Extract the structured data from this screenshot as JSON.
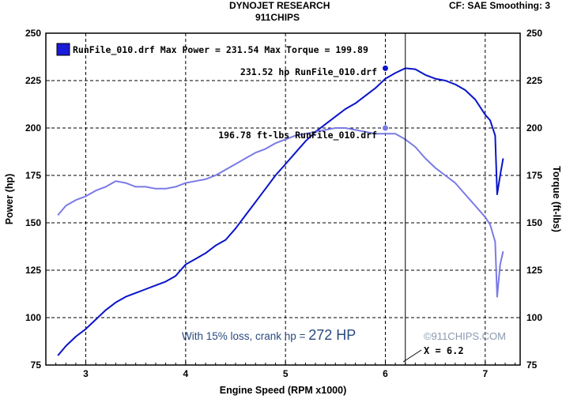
{
  "header": {
    "company": "DYNOJET RESEARCH",
    "subtitle": "911CHIPS",
    "settings": "CF: SAE  Smoothing: 3"
  },
  "chart_data": {
    "type": "line",
    "xlabel": "Engine Speed (RPM x1000)",
    "ylabel_left": "Power (hp)",
    "ylabel_right": "Torque (ft-lbs)",
    "xlim": [
      2.6,
      7.35
    ],
    "ylim_left": [
      75,
      250
    ],
    "ylim_right": [
      75,
      250
    ],
    "x_ticks": [
      3,
      4,
      5,
      6,
      7
    ],
    "y_ticks": [
      75,
      100,
      125,
      150,
      175,
      200,
      225,
      250
    ],
    "grid": "dashed",
    "legend_position": "top-left",
    "legend_text": "RunFile_010.drf Max Power = 231.54 Max Torque = 199.89",
    "colors": {
      "power": "#0a14c8",
      "torque": "#7a7ae6",
      "legend_swatch": "#1a1ad8",
      "label": "#000000",
      "note": "#2a4a80",
      "watermark": "#8a9ab0"
    },
    "series": [
      {
        "name": "RunFile_010.drf",
        "axis": "left",
        "quantity": "power",
        "x": [
          2.72,
          2.8,
          2.9,
          3.0,
          3.1,
          3.2,
          3.3,
          3.4,
          3.5,
          3.6,
          3.7,
          3.8,
          3.9,
          3.95,
          4.0,
          4.1,
          4.2,
          4.3,
          4.4,
          4.5,
          4.6,
          4.7,
          4.8,
          4.9,
          5.0,
          5.1,
          5.2,
          5.3,
          5.4,
          5.5,
          5.6,
          5.7,
          5.8,
          5.9,
          6.0,
          6.1,
          6.2,
          6.3,
          6.4,
          6.5,
          6.6,
          6.7,
          6.8,
          6.9,
          7.0,
          7.05,
          7.1,
          7.12,
          7.15,
          7.18
        ],
        "values": [
          80,
          85,
          90,
          94,
          99,
          104,
          108,
          111,
          113,
          115,
          117,
          119,
          122,
          125,
          128,
          131,
          134,
          138,
          141,
          147,
          154,
          161,
          168,
          175,
          181,
          187,
          193,
          198,
          202,
          206,
          210,
          213,
          217,
          221,
          226,
          229,
          231.5,
          231,
          228,
          226,
          225,
          223,
          220,
          215,
          207,
          204,
          196,
          165,
          175,
          184
        ]
      },
      {
        "name": "RunFile_010.drf",
        "axis": "right",
        "quantity": "torque",
        "x": [
          2.72,
          2.8,
          2.9,
          3.0,
          3.1,
          3.2,
          3.3,
          3.4,
          3.5,
          3.6,
          3.7,
          3.8,
          3.9,
          4.0,
          4.1,
          4.2,
          4.3,
          4.4,
          4.5,
          4.6,
          4.7,
          4.8,
          4.9,
          5.0,
          5.1,
          5.2,
          5.3,
          5.4,
          5.5,
          5.6,
          5.7,
          5.8,
          5.9,
          6.0,
          6.1,
          6.2,
          6.3,
          6.4,
          6.5,
          6.6,
          6.7,
          6.8,
          6.9,
          7.0,
          7.05,
          7.1,
          7.12,
          7.15,
          7.18
        ],
        "values": [
          154,
          159,
          162,
          164,
          167,
          169,
          172,
          171,
          169,
          169,
          168,
          168,
          169,
          171,
          172,
          173,
          175,
          178,
          181,
          184,
          187,
          189,
          192,
          194,
          196,
          197,
          198,
          199,
          200,
          200,
          199,
          198,
          197,
          197,
          197,
          194,
          190,
          184,
          179,
          175,
          171,
          165,
          159,
          153,
          149,
          140,
          111,
          128,
          135
        ]
      }
    ],
    "cursor": {
      "x": 6.2,
      "label": "X = 6.2"
    },
    "annotations": {
      "power_peak": "231.52 hp RunFile_010.drf",
      "torque_peak": "196.78 ft-lbs RunFile_010.drf",
      "crank_note_prefix": "With 15% loss, crank hp = ",
      "crank_note_value": "272 HP",
      "watermark": "©911CHIPS.COM"
    }
  }
}
